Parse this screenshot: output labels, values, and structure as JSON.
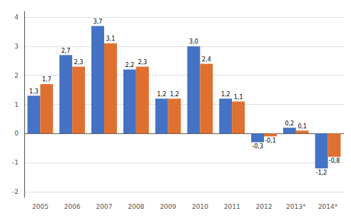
{
  "chart_data": {
    "type": "bar",
    "categories": [
      "2005",
      "2006",
      "2007",
      "2008",
      "2009",
      "2010",
      "2011",
      "2012",
      "2013*",
      "2014*"
    ],
    "series": [
      {
        "color": "#4472C4",
        "values": [
          1.3,
          2.7,
          3.7,
          2.2,
          1.2,
          3.0,
          1.2,
          -0.3,
          0.2,
          -1.2
        ],
        "value_labels": [
          "1,3",
          "2,7",
          "3,7",
          "2,2",
          "1,2",
          "3,0",
          "1,2",
          "-0,3",
          "0,2",
          "-1,2"
        ]
      },
      {
        "color": "#E07030",
        "values": [
          1.7,
          2.3,
          3.1,
          2.3,
          1.2,
          2.4,
          1.1,
          -0.1,
          0.1,
          -0.8
        ],
        "value_labels": [
          "1,7",
          "2,3",
          "3,1",
          "2,3",
          "1,2",
          "2,4",
          "1,1",
          "-0,1",
          "0,1",
          "-0,8"
        ]
      }
    ],
    "ylim": [
      -2.2,
      4.2
    ],
    "yticks": [
      -2,
      -1,
      0,
      1,
      2,
      3,
      4
    ],
    "grid": true,
    "data_labels": true
  }
}
